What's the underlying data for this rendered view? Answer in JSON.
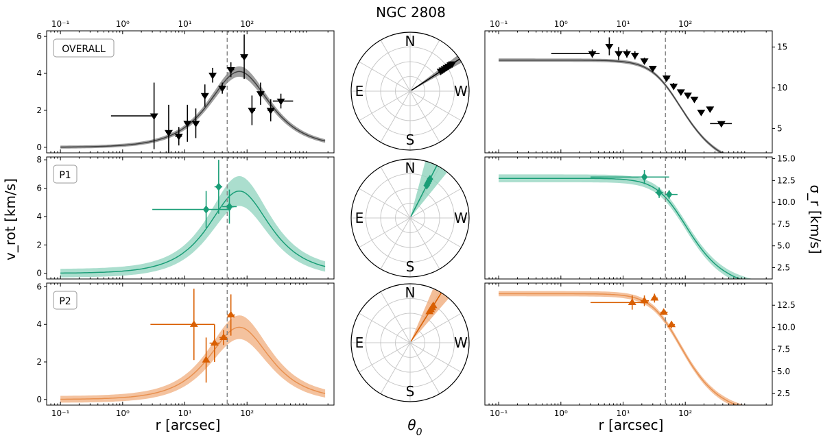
{
  "title": "NGC 2808",
  "xlabel": "$r$ [arcsec]",
  "xlabel_text": "r [arcsec]",
  "left_ylabel": "v_rot [km/s]",
  "right_ylabel": "σ_r [km/s]",
  "polar_label": "θ0",
  "compass": [
    "N",
    "E",
    "W",
    "S"
  ],
  "x_tick_labels": [
    "10⁻¹",
    "10⁰",
    "10¹",
    "10²"
  ],
  "x_ticks": [
    0.1,
    1,
    10,
    100
  ],
  "xlim": [
    0.06,
    2500
  ],
  "dashed_line_x": 48,
  "colors": {
    "overall": "#000000",
    "P1": "#1a9e77",
    "P2": "#d95f02",
    "grid": "#c8c8c8",
    "dashed": "#888888"
  },
  "rows": [
    {
      "name": "OVERALL",
      "color": "#000000",
      "band_color": "#7f7f7f",
      "line_color": "#404040",
      "marker": "triangle-down",
      "vrot": {
        "ylim": [
          -0.3,
          6.3
        ],
        "yticks": [
          0,
          2,
          4,
          6
        ],
        "model": {
          "peak": 4.1,
          "r_peak": 75,
          "band": 0.2
        },
        "points": [
          {
            "r": 3.2,
            "v": 1.7,
            "r_lo": 0.65,
            "r_hi": 3.3,
            "v_err": 1.8
          },
          {
            "r": 5.5,
            "v": 0.8,
            "r_lo": 5.0,
            "r_hi": 6.0,
            "v_err": 1.5
          },
          {
            "r": 8,
            "v": 0.6,
            "r_lo": 7,
            "r_hi": 9,
            "v_err": 0.5
          },
          {
            "r": 11,
            "v": 1.3,
            "r_lo": 10,
            "r_hi": 12,
            "v_err": 1.0
          },
          {
            "r": 15,
            "v": 1.3,
            "r_lo": 14,
            "r_hi": 16.5,
            "v_err": 0.8
          },
          {
            "r": 21,
            "v": 2.8,
            "r_lo": 19,
            "r_hi": 23,
            "v_err": 0.6
          },
          {
            "r": 28,
            "v": 3.9,
            "r_lo": 26,
            "r_hi": 31,
            "v_err": 0.4
          },
          {
            "r": 40,
            "v": 3.2,
            "r_lo": 37,
            "r_hi": 44,
            "v_err": 0.3
          },
          {
            "r": 55,
            "v": 4.2,
            "r_lo": 50,
            "r_hi": 62,
            "v_err": 0.4
          },
          {
            "r": 90,
            "v": 4.9,
            "r_lo": 80,
            "r_hi": 100,
            "v_err": 1.2
          },
          {
            "r": 120,
            "v": 2.0,
            "r_lo": 110,
            "r_hi": 135,
            "v_err": 0.8
          },
          {
            "r": 165,
            "v": 2.9,
            "r_lo": 150,
            "r_hi": 185,
            "v_err": 0.6
          },
          {
            "r": 240,
            "v": 2.0,
            "r_lo": 215,
            "r_hi": 270,
            "v_err": 0.6
          },
          {
            "r": 350,
            "v": 2.5,
            "r_lo": 260,
            "r_hi": 550,
            "v_err": 0.4
          }
        ]
      },
      "sigma": {
        "ylim": [
          2,
          17
        ],
        "yticks": [
          5,
          10,
          15
        ],
        "model": {
          "plateau": 13.4,
          "r_core": 45,
          "band": 0.2
        },
        "points": [
          {
            "r": 3.2,
            "s": 14.2,
            "r_lo": 0.7,
            "r_hi": 4.2,
            "s_err": 0.5
          },
          {
            "r": 6,
            "s": 15.1,
            "r_lo": 5.5,
            "r_hi": 6.5,
            "s_err": 1.1
          },
          {
            "r": 8.5,
            "s": 14.2,
            "r_lo": 7.8,
            "r_hi": 9.3,
            "s_err": 0.8
          },
          {
            "r": 11.5,
            "s": 14.2,
            "r_lo": 10.5,
            "r_hi": 12.5,
            "s_err": 0.5
          },
          {
            "r": 15.5,
            "s": 14.0,
            "r_lo": 14.5,
            "r_hi": 17,
            "s_err": 0.5
          },
          {
            "r": 22,
            "s": 13.3,
            "r_lo": 20,
            "r_hi": 24,
            "s_err": 0.4
          },
          {
            "r": 30,
            "s": 12.4,
            "r_lo": 27,
            "r_hi": 33,
            "s_err": 0.3
          },
          {
            "r": 50,
            "s": 11.2,
            "r_lo": 45,
            "r_hi": 56,
            "s_err": 0.3
          },
          {
            "r": 65,
            "s": 10.2,
            "r_lo": 60,
            "r_hi": 72,
            "s_err": 0.4
          },
          {
            "r": 85,
            "s": 9.5,
            "r_lo": 78,
            "r_hi": 93,
            "s_err": 0.3
          },
          {
            "r": 110,
            "s": 9.1,
            "r_lo": 100,
            "r_hi": 120,
            "s_err": 0.3
          },
          {
            "r": 140,
            "s": 8.6,
            "r_lo": 128,
            "r_hi": 155,
            "s_err": 0.3
          },
          {
            "r": 180,
            "s": 7.0,
            "r_lo": 165,
            "r_hi": 195,
            "s_err": 0.3
          },
          {
            "r": 250,
            "s": 7.4,
            "r_lo": 230,
            "r_hi": 275,
            "s_err": 0.3
          },
          {
            "r": 380,
            "s": 5.6,
            "r_lo": 250,
            "r_hi": 560,
            "s_err": 0.3
          }
        ]
      },
      "polar": {
        "theta_deg": 57,
        "spread_deg": 4,
        "points_r": [
          0.62,
          0.66,
          0.7,
          0.74,
          0.78,
          0.82,
          0.85
        ]
      }
    },
    {
      "name": "P1",
      "color": "#1a9e77",
      "band_color": "#8fd3bd",
      "line_color": "#1a9e77",
      "marker": "diamond",
      "vrot": {
        "ylim": [
          -0.4,
          8.2
        ],
        "yticks": [
          0,
          2,
          4,
          6,
          8
        ],
        "model": {
          "peak": 5.8,
          "r_peak": 75,
          "band": 0.75
        },
        "points": [
          {
            "r": 22,
            "v": 4.5,
            "r_lo": 3,
            "r_hi": 55,
            "v_err": 1.3
          },
          {
            "r": 35,
            "v": 6.1,
            "r_lo": 30,
            "r_hi": 40,
            "v_err": 1.9
          },
          {
            "r": 52,
            "v": 4.7,
            "r_lo": 40,
            "r_hi": 68,
            "v_err": 1.2
          }
        ]
      },
      "sigma": {
        "ylim": [
          1.2,
          15.2
        ],
        "yticks": [
          2.5,
          5.0,
          7.5,
          10.0,
          12.5,
          15.0
        ],
        "model": {
          "plateau": 12.75,
          "r_core": 55,
          "band": 0.45
        },
        "points": [
          {
            "r": 22,
            "s": 12.9,
            "r_lo": 3,
            "r_hi": 55,
            "s_err": 0.8
          },
          {
            "r": 38,
            "s": 11.1,
            "r_lo": 33,
            "r_hi": 44,
            "s_err": 0.6
          },
          {
            "r": 55,
            "s": 10.9,
            "r_lo": 48,
            "r_hi": 75,
            "s_err": 0.5
          }
        ]
      },
      "polar": {
        "theta_deg": 27,
        "spread_deg": 12,
        "points_r": [
          0.62,
          0.66,
          0.7,
          0.74
        ]
      }
    },
    {
      "name": "P2",
      "color": "#d95f02",
      "band_color": "#f0ad7d",
      "line_color": "#e8904f",
      "marker": "triangle-up",
      "vrot": {
        "ylim": [
          -0.3,
          6.2
        ],
        "yticks": [
          0,
          2,
          4,
          6
        ],
        "model": {
          "peak": 3.85,
          "r_peak": 75,
          "band": 0.45
        },
        "points": [
          {
            "r": 14,
            "v": 4.0,
            "r_lo": 2.8,
            "r_hi": 30,
            "v_err": 1.9
          },
          {
            "r": 22,
            "v": 2.1,
            "r_lo": 20,
            "r_hi": 24,
            "v_err": 1.2
          },
          {
            "r": 30,
            "v": 3.0,
            "r_lo": 25,
            "r_hi": 36,
            "v_err": 1.0
          },
          {
            "r": 42,
            "v": 3.3,
            "r_lo": 36,
            "r_hi": 48,
            "v_err": 0.4
          },
          {
            "r": 55,
            "v": 4.5,
            "r_lo": 48,
            "r_hi": 64,
            "v_err": 1.1
          }
        ]
      },
      "sigma": {
        "ylim": [
          1.2,
          15.0
        ],
        "yticks": [
          2.5,
          5.0,
          7.5,
          10.0,
          12.5
        ],
        "model": {
          "plateau": 13.8,
          "r_core": 45,
          "band": 0.3
        },
        "points": [
          {
            "r": 14,
            "s": 12.8,
            "r_lo": 3,
            "r_hi": 25,
            "s_err": 0.8
          },
          {
            "r": 22,
            "s": 13.0,
            "r_lo": 19,
            "r_hi": 26,
            "s_err": 0.6
          },
          {
            "r": 32,
            "s": 13.3,
            "r_lo": 29,
            "r_hi": 36,
            "s_err": 0.5
          },
          {
            "r": 45,
            "s": 11.7,
            "r_lo": 40,
            "r_hi": 52,
            "s_err": 0.3
          },
          {
            "r": 60,
            "s": 10.3,
            "r_lo": 55,
            "r_hi": 68,
            "s_err": 0.4
          }
        ]
      },
      "polar": {
        "theta_deg": 32,
        "spread_deg": 9,
        "points_r": [
          0.62,
          0.66,
          0.7,
          0.74
        ]
      }
    }
  ]
}
